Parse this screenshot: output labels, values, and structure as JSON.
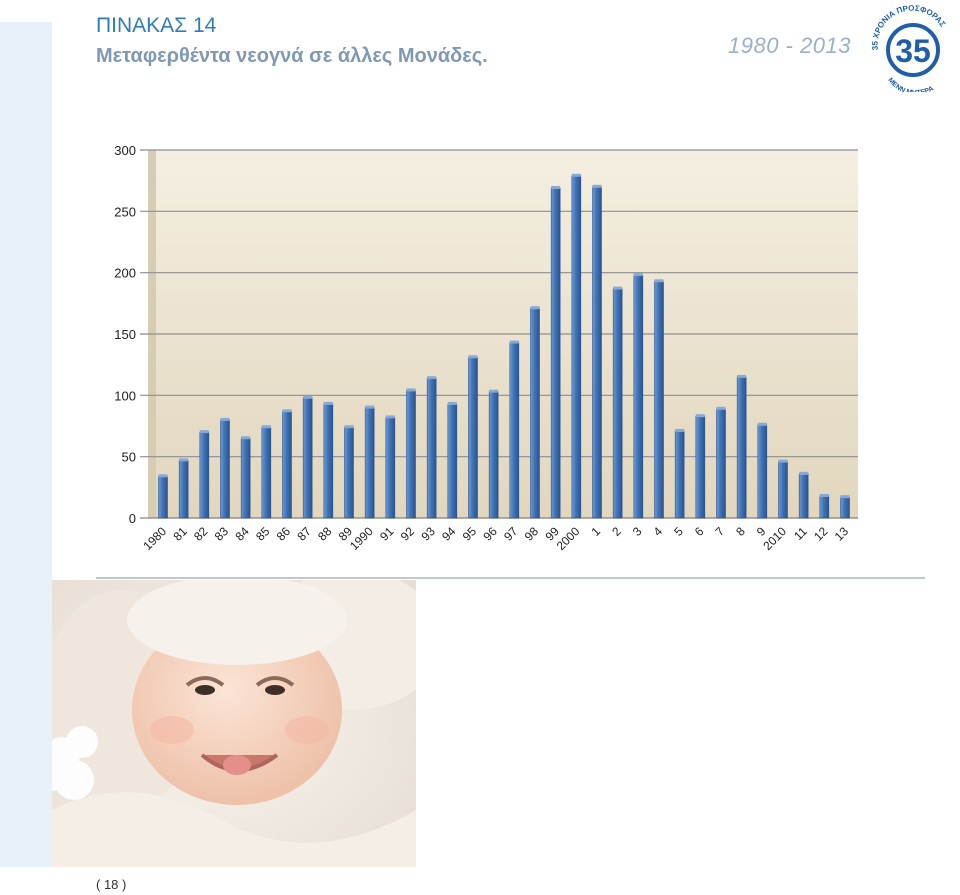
{
  "header": {
    "title": "ΠΙΝΑΚΑΣ 14",
    "subtitle": "Μεταφερθέντα νεογνά σε άλλες Μονάδες.",
    "years": "1980 - 2013"
  },
  "logo": {
    "number": "35",
    "top_text": "35 ΧΡΟΝΙΑ ΠΡΟΣΦΟΡΑΣ",
    "bottom_text": "ΜΕΝΝ ΜΗΤΕΡΑ",
    "color": "#1f5ea8"
  },
  "footer": {
    "page_number": "( 18 )"
  },
  "chart_data": {
    "type": "bar",
    "categories": [
      "1980",
      "81",
      "82",
      "83",
      "84",
      "85",
      "86",
      "87",
      "88",
      "89",
      "1990",
      "91",
      "92",
      "93",
      "94",
      "95",
      "96",
      "97",
      "98",
      "99",
      "2000",
      "1",
      "2",
      "3",
      "4",
      "5",
      "6",
      "7",
      "8",
      "9",
      "2010",
      "11",
      "12",
      "13"
    ],
    "values": [
      34,
      47,
      70,
      80,
      65,
      74,
      87,
      98,
      93,
      74,
      90,
      82,
      104,
      114,
      93,
      131,
      103,
      143,
      171,
      269,
      279,
      270,
      187,
      198,
      193,
      71,
      83,
      89,
      115,
      76,
      46,
      36,
      18,
      17
    ],
    "ylim": [
      0,
      300
    ],
    "yticks": [
      0,
      50,
      100,
      150,
      200,
      250,
      300
    ],
    "grid": true,
    "bar_color": "#3f73b7",
    "title": "",
    "xlabel": "",
    "ylabel": ""
  }
}
